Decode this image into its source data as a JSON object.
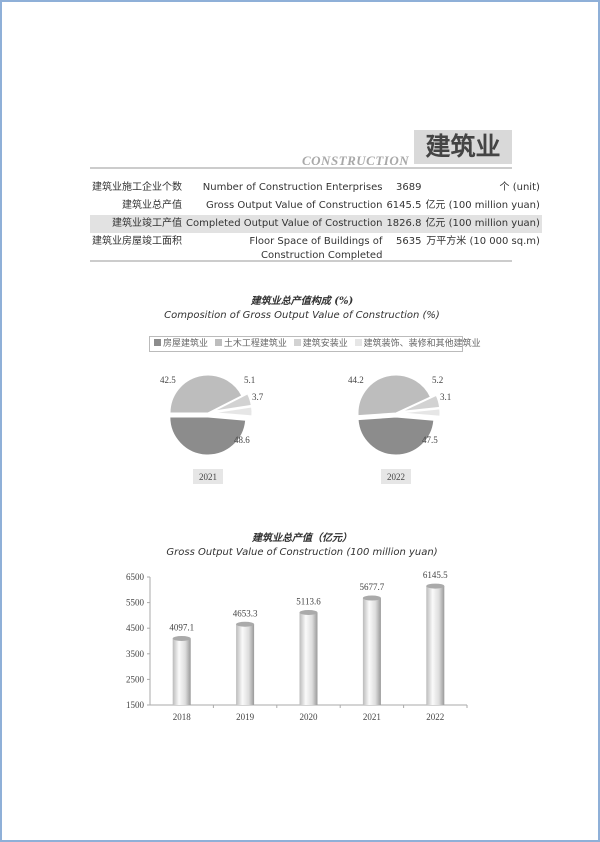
{
  "header": {
    "title_zh": "建筑业",
    "title_en": "CONSTRUCTION"
  },
  "table": {
    "rows": [
      {
        "zh": "建筑业施工企业个数",
        "en": "Number of Construction Enterprises",
        "value": "3689",
        "unit": "个 (unit)"
      },
      {
        "zh": "建筑业总产值",
        "en": "Gross Output Value of Construction",
        "value": "6145.5",
        "unit": "亿元 (100 million yuan)"
      },
      {
        "zh": "建筑业竣工产值",
        "en": "Completed Output Value of Costruction",
        "value": "1826.8",
        "unit": "亿元 (100 million yuan)"
      },
      {
        "zh": "建筑业房屋竣工面积",
        "en": "Floor Space of Buildings of Construction Completed",
        "value": "5635",
        "unit": "万平方米 (10 000 sq.m)"
      }
    ]
  },
  "chart_data": [
    {
      "type": "pie",
      "title": "建筑业总产值构成 (%)",
      "subtitle": "Composition of Gross Output Value of Construction (%)",
      "legend": [
        "房屋建筑业",
        "土木工程建筑业",
        "建筑安装业",
        "建筑装饰、装修和其他建筑业"
      ],
      "colors": [
        "#8c8c8c",
        "#bdbdbd",
        "#d2d2d2",
        "#e6e6e6"
      ],
      "pies": [
        {
          "label": "2021",
          "values": [
            48.6,
            42.5,
            5.1,
            3.7
          ]
        },
        {
          "label": "2022",
          "values": [
            47.5,
            44.2,
            5.2,
            3.1
          ]
        }
      ]
    },
    {
      "type": "bar",
      "title": "建筑业总产值（亿元）",
      "subtitle": "Gross Output Value of Construction (100 million yuan)",
      "categories": [
        "2018",
        "2019",
        "2020",
        "2021",
        "2022"
      ],
      "values": [
        4097.1,
        4653.3,
        5113.6,
        5677.7,
        6145.5
      ],
      "ylim": [
        1500,
        6500
      ],
      "yticks": [
        1500,
        2500,
        3500,
        4500,
        5500,
        6500
      ]
    }
  ]
}
